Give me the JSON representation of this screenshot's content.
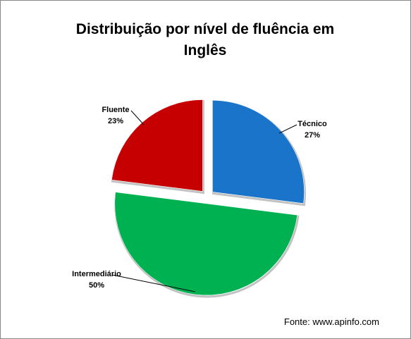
{
  "chart_data": {
    "type": "pie",
    "title": "Distribuição por nível de fluência em Inglês",
    "categories": [
      "Técnico",
      "Intermediário",
      "Fluente"
    ],
    "values": [
      27,
      50,
      23
    ],
    "value_labels": [
      "27%",
      "50%",
      "23%"
    ],
    "colors": [
      "#1a74c9",
      "#00b152",
      "#c60000"
    ],
    "source": "Fonte: www.apinfo.com"
  }
}
